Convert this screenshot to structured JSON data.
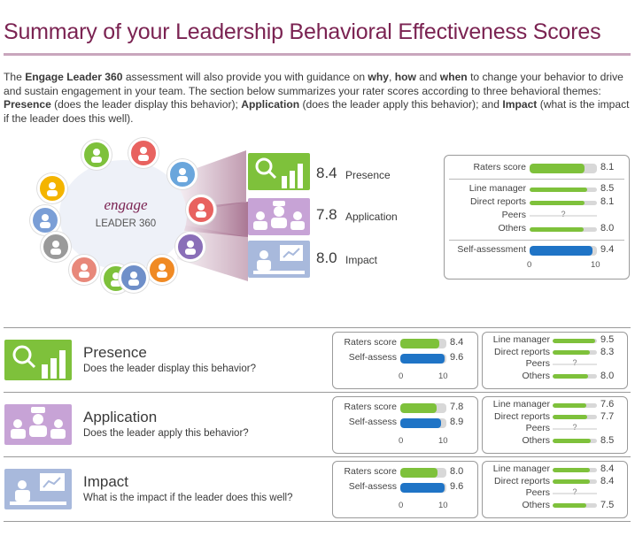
{
  "title": "Summary of your Leadership Behavioral Effectiveness Scores",
  "intro": {
    "t1": "The ",
    "b1": "Engage Leader 360",
    "t2": " assessment will also provide you with guidance on ",
    "b2": "why",
    "t3": ", ",
    "b3": "how",
    "t4": " and ",
    "b4": "when",
    "t5": " to change your behavior to drive and sustain engagement in your team. The section below summarizes your rater scores according to three behavioral themes: ",
    "b5": "Presence",
    "t6": " (does the leader display this behavior); ",
    "b6": "Application",
    "t7": " (does the leader apply this behavior); and ",
    "b7": "Impact",
    "t8": " (what is the impact if the leader does this well)."
  },
  "logo": {
    "engage": "engage",
    "leader": "LEADER 360"
  },
  "colors": {
    "title": "#7b2352",
    "green": "#7ec13b",
    "blue": "#1f74c6",
    "track": "#d8d8d8",
    "presence_tile": "#7ec13b",
    "application_tile": "#c7a3d6",
    "impact_tile": "#a8b9dc"
  },
  "icons": {
    "wheel": [
      "award-icon",
      "target-icon",
      "person-check-icon",
      "lightbulb-icon",
      "compass-icon",
      "user-edit-icon",
      "group-icon",
      "gears-icon",
      "team-circle-icon",
      "people-icon",
      "crowd-icon",
      "handshake-icon"
    ],
    "presence": "magnifier-bar-chart-icon",
    "application": "meeting-icon",
    "impact": "presentation-icon"
  },
  "overall": [
    {
      "theme": "Presence",
      "score": "8.4"
    },
    {
      "theme": "Application",
      "score": "7.8"
    },
    {
      "theme": "Impact",
      "score": "8.0"
    }
  ],
  "chart_data": [
    {
      "type": "bar",
      "orientation": "horizontal",
      "xlim": [
        0,
        10
      ],
      "xticks": [
        "0",
        "10"
      ],
      "categories": [
        "Raters score",
        "Line manager",
        "Direct reports",
        "Peers",
        "Others",
        "Self-assessment"
      ],
      "values": [
        8.1,
        8.5,
        8.1,
        null,
        8.0,
        9.4
      ],
      "labels": [
        "8.1",
        "8.5",
        "8.1",
        "?",
        "8.0",
        "9.4"
      ]
    },
    {
      "type": "bar",
      "orientation": "horizontal",
      "theme": "Presence",
      "question": "Does the leader display this behavior?",
      "xlim": [
        0,
        10
      ],
      "xticks": [
        "0",
        "10"
      ],
      "main": {
        "categories": [
          "Raters score",
          "Self-assess"
        ],
        "values": [
          8.4,
          9.6
        ],
        "labels": [
          "8.4",
          "9.6"
        ]
      },
      "groups": {
        "categories": [
          "Line manager",
          "Direct reports",
          "Peers",
          "Others"
        ],
        "values": [
          9.5,
          8.3,
          null,
          8.0
        ],
        "labels": [
          "9.5",
          "8.3",
          "?",
          "8.0"
        ]
      }
    },
    {
      "type": "bar",
      "orientation": "horizontal",
      "theme": "Application",
      "question": "Does the leader apply this behavior?",
      "xlim": [
        0,
        10
      ],
      "xticks": [
        "0",
        "10"
      ],
      "main": {
        "categories": [
          "Raters score",
          "Self-assess"
        ],
        "values": [
          7.8,
          8.9
        ],
        "labels": [
          "7.8",
          "8.9"
        ]
      },
      "groups": {
        "categories": [
          "Line manager",
          "Direct reports",
          "Peers",
          "Others"
        ],
        "values": [
          7.6,
          7.7,
          null,
          8.5
        ],
        "labels": [
          "7.6",
          "7.7",
          "?",
          "8.5"
        ]
      }
    },
    {
      "type": "bar",
      "orientation": "horizontal",
      "theme": "Impact",
      "question": "What is the impact if the leader does this well?",
      "xlim": [
        0,
        10
      ],
      "xticks": [
        "0",
        "10"
      ],
      "main": {
        "categories": [
          "Raters score",
          "Self-assess"
        ],
        "values": [
          8.0,
          9.6
        ],
        "labels": [
          "8.0",
          "9.6"
        ]
      },
      "groups": {
        "categories": [
          "Line manager",
          "Direct reports",
          "Peers",
          "Others"
        ],
        "values": [
          8.4,
          8.4,
          null,
          7.5
        ],
        "labels": [
          "8.4",
          "8.4",
          "?",
          "7.5"
        ]
      }
    }
  ]
}
